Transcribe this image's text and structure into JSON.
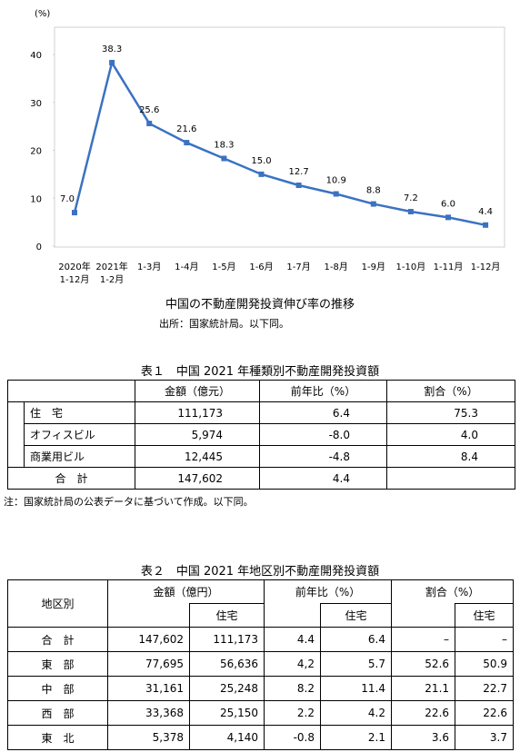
{
  "chart_data": {
    "type": "line",
    "y_unit": "(%)",
    "categories": [
      [
        "2020年",
        "1-12月"
      ],
      [
        "2021年",
        "1-2月"
      ],
      [
        "1-3月"
      ],
      [
        "1-4月"
      ],
      [
        "1-5月"
      ],
      [
        "1-6月"
      ],
      [
        "1-7月"
      ],
      [
        "1-8月"
      ],
      [
        "1-9月"
      ],
      [
        "1-10月"
      ],
      [
        "1-11月"
      ],
      [
        "1-12月"
      ]
    ],
    "values": [
      7.0,
      38.3,
      25.6,
      21.6,
      18.3,
      15.0,
      12.7,
      10.9,
      8.8,
      7.2,
      6.0,
      4.4
    ],
    "value_labels": [
      "7.0",
      "38.3",
      "25.6",
      "21.6",
      "18.3",
      "15.0",
      "12.7",
      "10.9",
      "8.8",
      "7.2",
      "6.0",
      "4.4"
    ],
    "color": "#3b72c2",
    "ylim": [
      0,
      40
    ],
    "yticks": [
      0,
      10,
      20,
      30,
      40
    ],
    "caption": "中国の不動産開発投資伸び率の推移",
    "source": "出所：国家統計局。以下同。"
  },
  "table1": {
    "title": "表１　中国 2021 年種類別不動産開発投資額",
    "header": [
      "金額（億元）",
      "前年比（%）",
      "割合（%）"
    ],
    "rows": [
      [
        "住　宅",
        "111,173",
        "6.4",
        "75.3"
      ],
      [
        "オフィスビル",
        "5,974",
        "-8.0",
        "4.0"
      ],
      [
        "商業用ビル",
        "12,445",
        "-4.8",
        "8.4"
      ],
      [
        "合　計",
        "147,602",
        "4.4"
      ]
    ],
    "note": "注：国家統計局の公表データに基づいて作成。以下同。"
  },
  "table2": {
    "title": "表２　中国 2021 年地区別不動産開発投資額",
    "header": [
      "地区別",
      "金額（億円）",
      "前年比（%）",
      "割合（%）"
    ],
    "subheader": [
      "住宅",
      "住宅",
      "住宅"
    ],
    "rows": [
      [
        "合　計",
        "147,602",
        "111,173",
        "4.4",
        "6.4",
        "–",
        "–"
      ],
      [
        "東　部",
        "77,695",
        "56,636",
        "4,2",
        "5.7",
        "52.6",
        "50.9"
      ],
      [
        "中　部",
        "31,161",
        "25,248",
        "8.2",
        "11.4",
        "21.1",
        "22.7"
      ],
      [
        "西　部",
        "33,368",
        "25,150",
        "2.2",
        "4.2",
        "22.6",
        "22.6"
      ],
      [
        "東　北",
        "5,378",
        "4,140",
        "-0.8",
        "2.1",
        "3.6",
        "3.7"
      ]
    ]
  }
}
